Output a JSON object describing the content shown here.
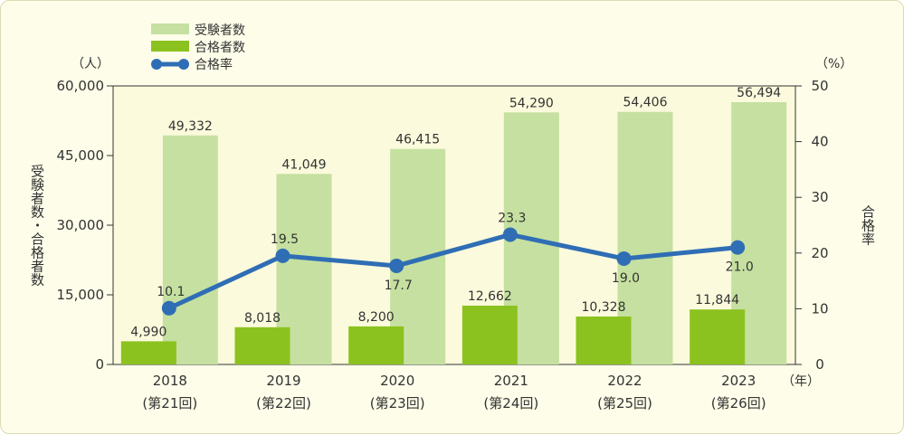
{
  "chart_data": {
    "type": "bar+line",
    "categories": [
      {
        "year": "2018",
        "session": "(第21回)"
      },
      {
        "year": "2019",
        "session": "(第22回)"
      },
      {
        "year": "2020",
        "session": "(第23回)"
      },
      {
        "year": "2021",
        "session": "(第24回)"
      },
      {
        "year": "2022",
        "session": "(第25回)"
      },
      {
        "year": "2023",
        "session": "(第26回)"
      }
    ],
    "series": [
      {
        "name": "受験者数",
        "kind": "bar",
        "axis": "left",
        "color": "#c5e0a0",
        "values": [
          49332,
          41049,
          46415,
          54290,
          54406,
          56494
        ],
        "labels": [
          "49,332",
          "41,049",
          "46,415",
          "54,290",
          "54,406",
          "56,494"
        ]
      },
      {
        "name": "合格者数",
        "kind": "bar",
        "axis": "left",
        "color": "#8cc21f",
        "values": [
          4990,
          8018,
          8200,
          12662,
          10328,
          11844
        ],
        "labels": [
          "4,990",
          "8,018",
          "8,200",
          "12,662",
          "10,328",
          "11,844"
        ]
      },
      {
        "name": "合格率",
        "kind": "line",
        "axis": "right",
        "color": "#2f6eb5",
        "values": [
          10.1,
          19.5,
          17.7,
          23.3,
          19.0,
          21.0
        ],
        "labels": [
          "10.1",
          "19.5",
          "17.7",
          "23.3",
          "19.0",
          "21.0"
        ]
      }
    ],
    "y_left": {
      "unit": "（人）",
      "title": "受験者数・合格者数",
      "ylim": [
        0,
        60000
      ],
      "ticks": [
        0,
        15000,
        30000,
        45000,
        60000
      ],
      "tick_labels": [
        "0",
        "15,000",
        "30,000",
        "45,000",
        "60,000"
      ]
    },
    "y_right": {
      "unit": "（%）",
      "title": "合格率",
      "ylim": [
        0,
        50
      ],
      "ticks": [
        0,
        10,
        20,
        30,
        40,
        50
      ],
      "tick_labels": [
        "0",
        "10",
        "20",
        "30",
        "40",
        "50"
      ]
    },
    "x_unit": "（年）",
    "legend_position": "top-left",
    "grid": false,
    "plot_background": "#fbfadc"
  }
}
